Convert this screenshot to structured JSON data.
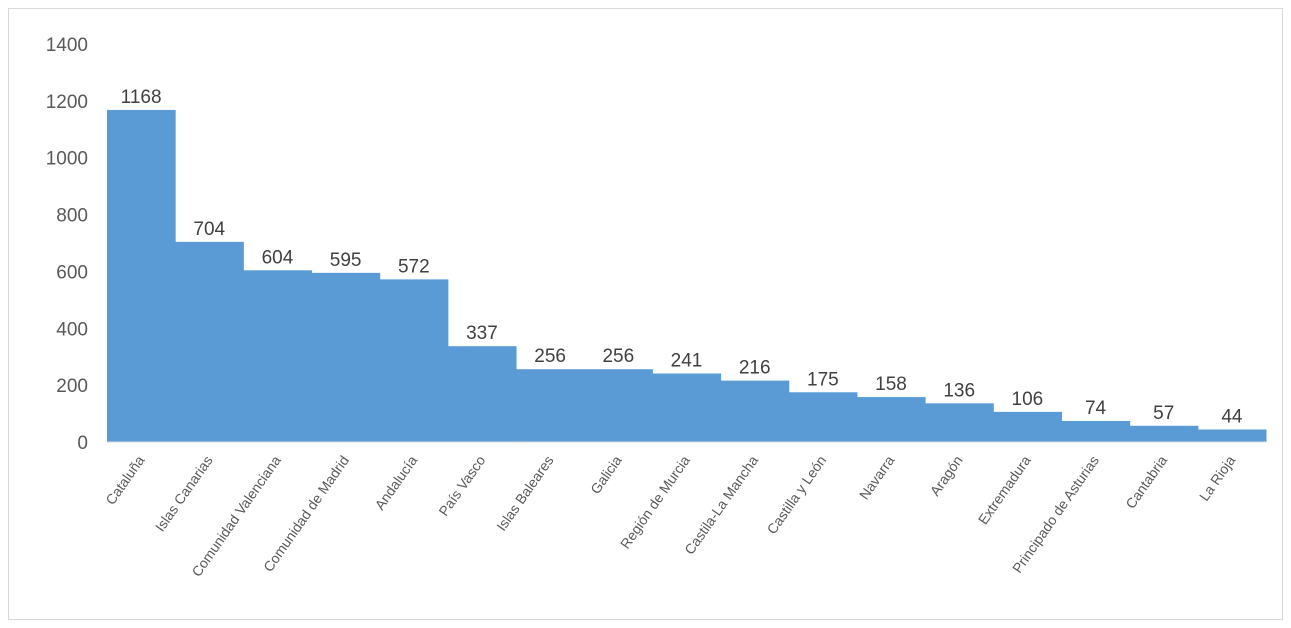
{
  "chart_data": {
    "type": "bar",
    "categories": [
      "Cataluña",
      "Islas Canarias",
      "Comunidad Valenciana",
      "Comunidad de Madrid",
      "Andalucía",
      "País Vasco",
      "Islas Baleares",
      "Galicia",
      "Región de Murcia",
      "Castila-La Mancha",
      "Castilla y León",
      "Navarra",
      "Aragón",
      "Extremadura",
      "Principado de Asturias",
      "Cantabria",
      "La Rioja"
    ],
    "values": [
      1168,
      704,
      604,
      595,
      572,
      337,
      256,
      256,
      241,
      216,
      175,
      158,
      136,
      106,
      74,
      57,
      44
    ],
    "ylim": [
      0,
      1400
    ],
    "yticks": [
      0,
      200,
      400,
      600,
      800,
      1000,
      1200,
      1400
    ],
    "bar_color": "#5b9bd5",
    "gap_width": 0,
    "grid": false,
    "legend": "none",
    "data_labels": true
  }
}
